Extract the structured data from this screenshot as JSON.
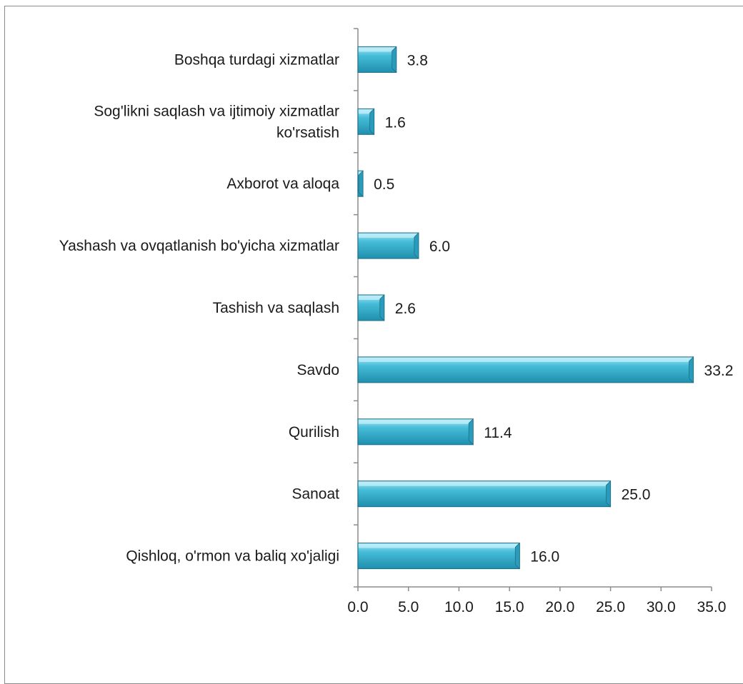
{
  "chart_data": {
    "type": "bar",
    "orientation": "horizontal",
    "title": "",
    "xlabel": "",
    "ylabel": "",
    "categories": [
      "Qishloq, o'rmon va baliq xo'jaligi",
      "Sanoat",
      "Qurilish",
      "Savdo",
      "Tashish va saqlash",
      "Yashash va ovqatlanish bo'yicha xizmatlar",
      "Axborot va aloqa",
      "Sog'likni saqlash va ijtimoiy xizmatlar ko'rsatish",
      "Boshqa turdagi xizmatlar"
    ],
    "category_lines": [
      [
        "Qishloq, o'rmon va baliq xo'jaligi"
      ],
      [
        "Sanoat"
      ],
      [
        "Qurilish"
      ],
      [
        "Savdo"
      ],
      [
        "Tashish va saqlash"
      ],
      [
        "Yashash va ovqatlanish bo'yicha xizmatlar"
      ],
      [
        "Axborot va aloqa"
      ],
      [
        "Sog'likni saqlash va ijtimoiy xizmatlar",
        "ko'rsatish"
      ],
      [
        "Boshqa turdagi xizmatlar"
      ]
    ],
    "values": [
      16.0,
      25.0,
      11.4,
      33.2,
      2.6,
      6.0,
      0.5,
      1.6,
      3.8
    ],
    "value_labels": [
      "16.0",
      "25.0",
      "11.4",
      "33.2",
      "2.6",
      "6.0",
      "0.5",
      "1.6",
      "3.8"
    ],
    "xlim": [
      0,
      35
    ],
    "x_ticks": [
      0,
      5,
      10,
      15,
      20,
      25,
      30,
      35
    ],
    "x_tick_labels": [
      "0.0",
      "5.0",
      "10.0",
      "15.0",
      "20.0",
      "25.0",
      "30.0",
      "35.0"
    ],
    "grid": false,
    "legend": "none",
    "bar_color": "#3fb6d3",
    "bar_edge_color": "#1f6f88"
  }
}
